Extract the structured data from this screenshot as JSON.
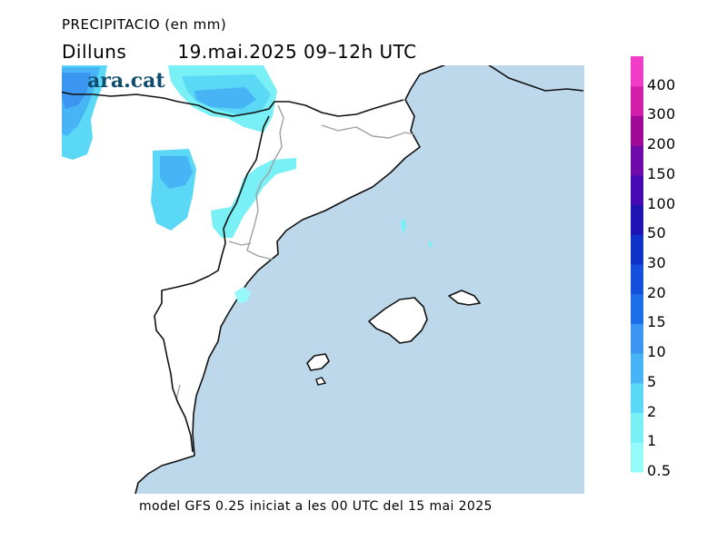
{
  "header": {
    "title": "PRECIPITACIO (en mm)",
    "day": "Dilluns",
    "datetime": "19.mai.2025 09–12h UTC"
  },
  "brand": "ara.cat",
  "footer": "model GFS 0.25 iniciat a les 00 UTC del 15 mai 2025",
  "colors": {
    "sea": "#bcd8ea",
    "land": "#ffffff",
    "coast": "#111111",
    "border": "#a0a0a0"
  },
  "legend": [
    {
      "label": "0.5",
      "color": "#96fafa"
    },
    {
      "label": "1",
      "color": "#78f0f5"
    },
    {
      "label": "2",
      "color": "#5ad8f5"
    },
    {
      "label": "5",
      "color": "#46b4f5"
    },
    {
      "label": "10",
      "color": "#3a96f0"
    },
    {
      "label": "15",
      "color": "#1e6eeb"
    },
    {
      "label": "20",
      "color": "#1450dc"
    },
    {
      "label": "30",
      "color": "#0f32c8"
    },
    {
      "label": "50",
      "color": "#1e14b4"
    },
    {
      "label": "100",
      "color": "#460ab4"
    },
    {
      "label": "150",
      "color": "#6e0aaa"
    },
    {
      "label": "200",
      "color": "#a00a96"
    },
    {
      "label": "300",
      "color": "#d21eaa"
    },
    {
      "label": "400",
      "color": "#f03cc8"
    }
  ]
}
